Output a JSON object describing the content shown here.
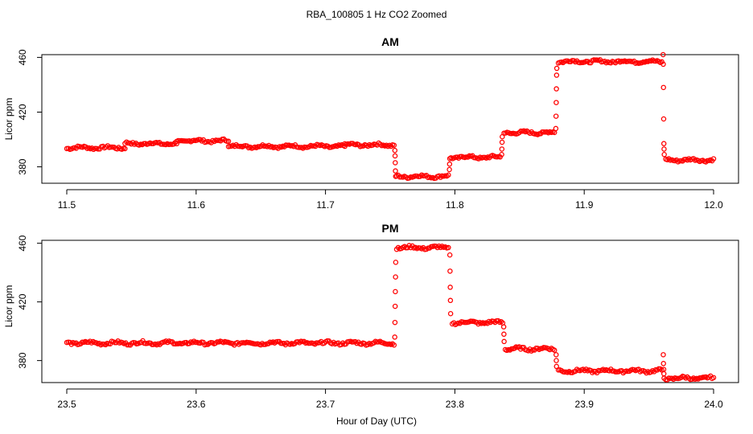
{
  "figure": {
    "title": "RBA_100805  1 Hz CO2 Zoomed",
    "xlabel": "Hour of Day (UTC)"
  },
  "colors": {
    "points": "#ff0000",
    "axes": "#000000"
  },
  "chart_data": [
    {
      "type": "scatter",
      "title": "AM",
      "xlabel": "",
      "ylabel": "Licor ppm",
      "xlim": [
        11.5,
        12.0
      ],
      "ylim": [
        368,
        462
      ],
      "x_ticks": [
        "11.5",
        "11.6",
        "11.7",
        "11.8",
        "11.9",
        "12.0"
      ],
      "y_ticks": [
        "380",
        "420",
        "460"
      ],
      "marker": "open-circle",
      "segments": [
        {
          "x": [
            11.5,
            11.545
          ],
          "y": 394
        },
        {
          "x": [
            11.545,
            11.585
          ],
          "y": 397
        },
        {
          "x": [
            11.585,
            11.625
          ],
          "y": 399
        },
        {
          "x": [
            11.625,
            11.715
          ],
          "y": 395
        },
        {
          "x": [
            11.715,
            11.753
          ],
          "y": 396
        },
        {
          "x": [
            11.755,
            11.795
          ],
          "y": 373
        },
        {
          "x": [
            11.797,
            11.835
          ],
          "y": 387
        },
        {
          "x": [
            11.838,
            11.877
          ],
          "y": 405
        },
        {
          "x": [
            11.88,
            11.96
          ],
          "y": 457
        },
        {
          "x": [
            11.963,
            12.0
          ],
          "y": 385
        }
      ],
      "transitions": [
        {
          "x": 11.754,
          "y": [
            392,
            388,
            383,
            377,
            373
          ]
        },
        {
          "x": 11.796,
          "y": [
            378,
            382,
            386
          ]
        },
        {
          "x": 11.8365,
          "y": [
            389,
            393,
            398,
            402
          ]
        },
        {
          "x": 11.8785,
          "y": [
            408,
            417,
            427,
            437,
            447,
            452
          ]
        },
        {
          "x": 11.9615,
          "y": [
            462,
            455,
            438,
            415,
            397,
            393,
            389
          ]
        }
      ]
    },
    {
      "type": "scatter",
      "title": "PM",
      "xlabel": "",
      "ylabel": "Licor ppm",
      "xlim": [
        23.5,
        24.0
      ],
      "ylim": [
        365,
        462
      ],
      "x_ticks": [
        "23.5",
        "23.6",
        "23.7",
        "23.8",
        "23.9",
        "24.0"
      ],
      "y_ticks": [
        "380",
        "420",
        "460"
      ],
      "marker": "open-circle",
      "segments": [
        {
          "x": [
            23.5,
            23.753
          ],
          "y": 392
        },
        {
          "x": [
            23.755,
            23.795
          ],
          "y": 457
        },
        {
          "x": [
            23.798,
            23.837
          ],
          "y": 406
        },
        {
          "x": [
            23.839,
            23.877
          ],
          "y": 388
        },
        {
          "x": [
            23.88,
            23.96
          ],
          "y": 373
        },
        {
          "x": [
            23.963,
            24.0
          ],
          "y": 368
        }
      ],
      "transitions": [
        {
          "x": 23.754,
          "y": [
            396,
            406,
            417,
            427,
            437,
            447
          ]
        },
        {
          "x": 23.7965,
          "y": [
            452,
            441,
            430,
            421,
            412
          ]
        },
        {
          "x": 23.838,
          "y": [
            403,
            398,
            393
          ]
        },
        {
          "x": 23.8785,
          "y": [
            384,
            380,
            376
          ]
        },
        {
          "x": 23.9615,
          "y": [
            384,
            378,
            374,
            371,
            368
          ]
        }
      ]
    }
  ]
}
